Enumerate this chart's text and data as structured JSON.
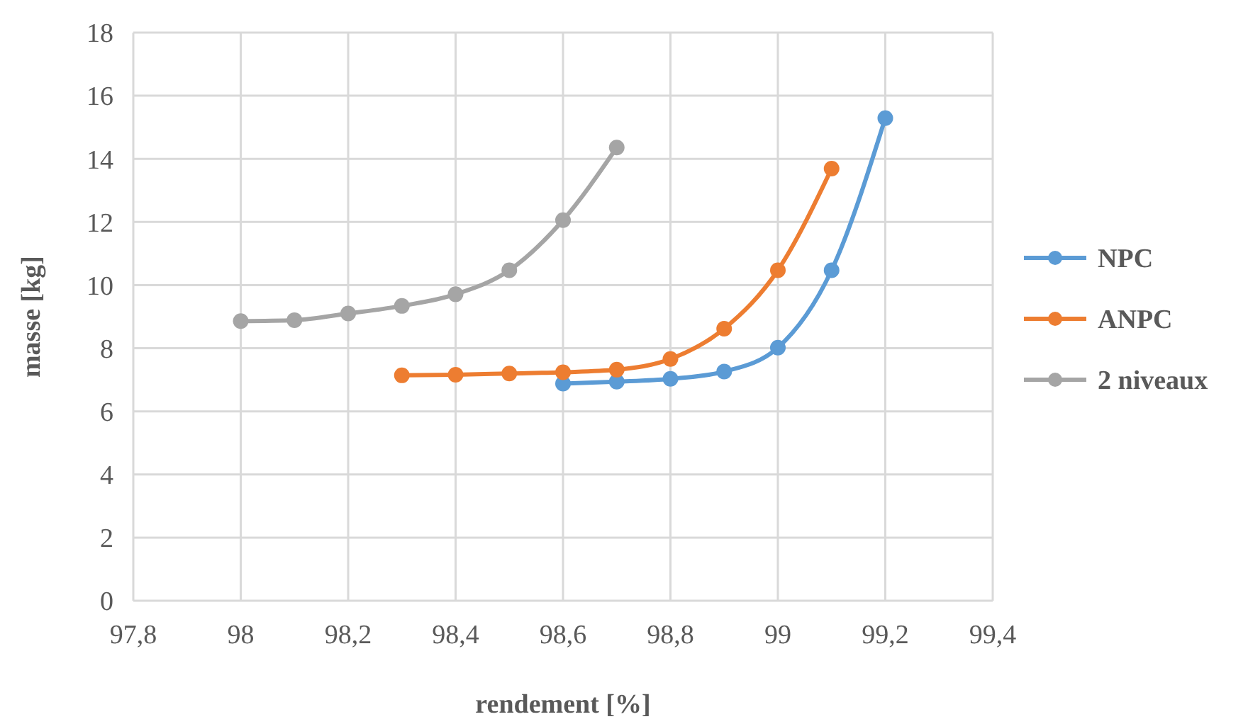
{
  "chart_data": {
    "type": "line",
    "xlabel": "rendement [%]",
    "ylabel": "masse [kg]",
    "xlim": [
      97.8,
      99.4
    ],
    "xticks": [
      {
        "value": 97.8,
        "label": "97,8"
      },
      98,
      {
        "value": 98.2,
        "label": "98,2"
      },
      {
        "value": 98.4,
        "label": "98,4"
      },
      {
        "value": 98.6,
        "label": "98,6"
      },
      {
        "value": 98.8,
        "label": "98,8"
      },
      99,
      {
        "value": 99.2,
        "label": "99,2"
      },
      {
        "value": 99.4,
        "label": "99,4"
      }
    ],
    "ylim": [
      0,
      18
    ],
    "yticks": [
      0,
      2,
      4,
      6,
      8,
      10,
      12,
      14,
      16,
      18
    ],
    "grid": true,
    "legend": "right",
    "marker": "circle",
    "series": [
      {
        "name": "NPC",
        "color": "#5b9bd5",
        "x": [
          98.6,
          98.7,
          98.8,
          98.9,
          99.0,
          99.1,
          99.2
        ],
        "values": [
          6.88,
          6.94,
          7.03,
          7.26,
          8.02,
          10.47,
          15.29
        ]
      },
      {
        "name": "ANPC",
        "color": "#ed7d31",
        "x": [
          98.3,
          98.4,
          98.5,
          98.6,
          98.7,
          98.8,
          98.9,
          99.0,
          99.1
        ],
        "values": [
          7.14,
          7.16,
          7.2,
          7.24,
          7.32,
          7.66,
          8.62,
          10.47,
          13.69
        ]
      },
      {
        "name": "2 niveaux",
        "color": "#a5a5a5",
        "x": [
          98.0,
          98.1,
          98.2,
          98.3,
          98.4,
          98.5,
          98.6,
          98.7
        ],
        "values": [
          8.86,
          8.89,
          9.1,
          9.34,
          9.71,
          10.47,
          12.06,
          14.36
        ]
      }
    ]
  }
}
